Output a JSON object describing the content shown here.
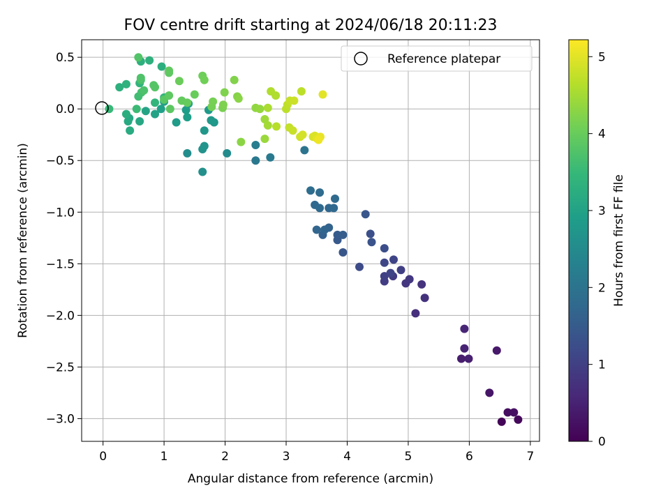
{
  "chart_data": {
    "type": "scatter",
    "title": "FOV centre drift starting at 2024/06/18 20:11:23",
    "xlabel": "Angular distance from reference (arcmin)",
    "ylabel": "Rotation from reference (arcmin)",
    "xlim": [
      -0.35,
      7.15
    ],
    "ylim": [
      -3.22,
      0.67
    ],
    "xticks": [
      0,
      1,
      2,
      3,
      4,
      5,
      6,
      7
    ],
    "xtick_labels": [
      "0",
      "1",
      "2",
      "3",
      "4",
      "5",
      "6",
      "7"
    ],
    "yticks": [
      0.5,
      0.0,
      -0.5,
      -1.0,
      -1.5,
      -2.0,
      -2.5,
      -3.0
    ],
    "ytick_labels": [
      "0.5",
      "0.0",
      "−0.5",
      "−1.0",
      "−1.5",
      "−2.0",
      "−2.5",
      "−3.0"
    ],
    "grid": true,
    "legend": {
      "position": "upper right",
      "entries": [
        "Reference platepar"
      ]
    },
    "reference_point": {
      "x": 0.0,
      "y": 0.0,
      "label": "Reference platepar"
    },
    "colorbar": {
      "label": "Hours from first FF file",
      "range": [
        0,
        5.22
      ],
      "ticks": [
        0,
        1,
        2,
        3,
        4,
        5
      ],
      "tick_labels": [
        "0",
        "1",
        "2",
        "3",
        "4",
        "5"
      ],
      "colormap": "viridis",
      "stops": [
        "#440154",
        "#482878",
        "#3e4989",
        "#31688e",
        "#26828e",
        "#1f9e89",
        "#35b779",
        "#6ece58",
        "#b5de2b",
        "#fde725"
      ]
    },
    "points_fields": [
      "x",
      "y",
      "hours"
    ],
    "points": [
      [
        6.53,
        -3.03,
        0.05
      ],
      [
        6.8,
        -3.01,
        0.12
      ],
      [
        6.63,
        -2.94,
        0.18
      ],
      [
        6.73,
        -2.94,
        0.22
      ],
      [
        6.33,
        -2.75,
        0.3
      ],
      [
        5.87,
        -2.42,
        0.42
      ],
      [
        5.99,
        -2.42,
        0.46
      ],
      [
        6.45,
        -2.34,
        0.35
      ],
      [
        5.92,
        -2.32,
        0.5
      ],
      [
        5.92,
        -2.13,
        0.55
      ],
      [
        5.12,
        -1.98,
        0.7
      ],
      [
        5.27,
        -1.83,
        0.75
      ],
      [
        4.96,
        -1.69,
        0.82
      ],
      [
        5.22,
        -1.7,
        0.78
      ],
      [
        5.02,
        -1.65,
        0.85
      ],
      [
        4.61,
        -1.67,
        0.95
      ],
      [
        4.75,
        -1.62,
        0.9
      ],
      [
        4.61,
        -1.62,
        1.0
      ],
      [
        4.71,
        -1.59,
        1.05
      ],
      [
        4.88,
        -1.56,
        0.98
      ],
      [
        4.61,
        -1.49,
        1.1
      ],
      [
        4.76,
        -1.46,
        1.08
      ],
      [
        4.2,
        -1.53,
        1.2
      ],
      [
        4.61,
        -1.35,
        1.25
      ],
      [
        3.93,
        -1.39,
        1.4
      ],
      [
        4.4,
        -1.29,
        1.35
      ],
      [
        3.84,
        -1.27,
        1.45
      ],
      [
        3.84,
        -1.22,
        1.5
      ],
      [
        3.93,
        -1.22,
        1.55
      ],
      [
        4.38,
        -1.21,
        1.3
      ],
      [
        3.6,
        -1.22,
        1.6
      ],
      [
        3.7,
        -1.15,
        1.65
      ],
      [
        3.5,
        -1.17,
        1.7
      ],
      [
        3.63,
        -1.17,
        1.68
      ],
      [
        4.3,
        -1.02,
        1.4
      ],
      [
        3.47,
        -0.93,
        1.75
      ],
      [
        3.55,
        -0.96,
        1.78
      ],
      [
        3.7,
        -0.96,
        1.72
      ],
      [
        3.78,
        -0.96,
        1.76
      ],
      [
        3.8,
        -0.87,
        1.8
      ],
      [
        3.4,
        -0.79,
        1.85
      ],
      [
        3.55,
        -0.81,
        1.82
      ],
      [
        3.3,
        -0.4,
        2.0
      ],
      [
        2.5,
        -0.5,
        2.1
      ],
      [
        2.74,
        -0.47,
        2.15
      ],
      [
        2.5,
        -0.35,
        2.2
      ],
      [
        2.03,
        -0.43,
        2.5
      ],
      [
        1.63,
        -0.61,
        2.6
      ],
      [
        1.38,
        -0.43,
        2.55
      ],
      [
        1.63,
        -0.39,
        2.65
      ],
      [
        1.66,
        -0.36,
        2.7
      ],
      [
        1.66,
        -0.21,
        2.75
      ],
      [
        1.77,
        -0.11,
        2.8
      ],
      [
        1.82,
        -0.13,
        2.78
      ],
      [
        1.73,
        -0.01,
        2.82
      ],
      [
        1.2,
        -0.13,
        2.85
      ],
      [
        1.38,
        -0.08,
        2.9
      ],
      [
        1.36,
        -0.01,
        2.88
      ],
      [
        1.4,
        0.05,
        2.92
      ],
      [
        0.95,
        0.0,
        2.95
      ],
      [
        1.0,
        0.07,
        2.97
      ],
      [
        0.85,
        -0.05,
        3.0
      ],
      [
        0.7,
        -0.02,
        3.05
      ],
      [
        0.6,
        -0.12,
        3.1
      ],
      [
        0.43,
        -0.09,
        3.12
      ],
      [
        0.41,
        -0.12,
        3.15
      ],
      [
        0.44,
        -0.21,
        3.2
      ],
      [
        0.38,
        -0.05,
        3.25
      ],
      [
        0.27,
        0.21,
        3.3
      ],
      [
        0.38,
        0.24,
        3.35
      ],
      [
        0.6,
        0.25,
        3.38
      ],
      [
        0.62,
        0.46,
        3.3
      ],
      [
        0.76,
        0.47,
        3.32
      ],
      [
        0.96,
        0.41,
        3.28
      ],
      [
        1.0,
        0.11,
        3.4
      ],
      [
        0.85,
        0.06,
        3.42
      ],
      [
        0.1,
        0.0,
        3.5
      ],
      [
        0.55,
        0.0,
        3.55
      ],
      [
        0.58,
        0.12,
        3.6
      ],
      [
        0.63,
        0.16,
        3.65
      ],
      [
        0.62,
        0.28,
        3.7
      ],
      [
        0.62,
        0.3,
        3.75
      ],
      [
        0.67,
        0.18,
        3.72
      ],
      [
        0.58,
        0.5,
        3.78
      ],
      [
        0.83,
        0.23,
        3.8
      ],
      [
        0.85,
        0.21,
        3.82
      ],
      [
        1.0,
        0.09,
        3.85
      ],
      [
        1.1,
        0.0,
        3.88
      ],
      [
        1.08,
        0.13,
        3.9
      ],
      [
        1.08,
        0.37,
        3.92
      ],
      [
        1.08,
        0.35,
        3.9
      ],
      [
        1.29,
        0.08,
        3.95
      ],
      [
        1.38,
        0.06,
        3.98
      ],
      [
        1.5,
        0.14,
        4.0
      ],
      [
        1.25,
        0.27,
        4.02
      ],
      [
        1.63,
        0.32,
        4.05
      ],
      [
        1.66,
        0.28,
        4.08
      ],
      [
        1.78,
        0.02,
        4.1
      ],
      [
        1.8,
        0.07,
        4.12
      ],
      [
        1.96,
        0.01,
        4.15
      ],
      [
        1.97,
        0.04,
        4.18
      ],
      [
        1.99,
        0.16,
        4.2
      ],
      [
        2.15,
        0.28,
        4.22
      ],
      [
        2.2,
        0.12,
        4.25
      ],
      [
        2.22,
        0.1,
        4.28
      ],
      [
        2.26,
        -0.32,
        4.3
      ],
      [
        2.5,
        0.01,
        4.35
      ],
      [
        2.57,
        0.0,
        4.38
      ],
      [
        2.65,
        -0.29,
        4.42
      ],
      [
        2.65,
        -0.1,
        4.45
      ],
      [
        2.7,
        -0.16,
        4.5
      ],
      [
        2.7,
        0.01,
        4.55
      ],
      [
        2.75,
        0.17,
        4.6
      ],
      [
        2.84,
        -0.17,
        4.65
      ],
      [
        2.83,
        0.13,
        4.6
      ],
      [
        3.0,
        0.0,
        4.7
      ],
      [
        3.02,
        0.04,
        4.72
      ],
      [
        3.05,
        -0.18,
        4.75
      ],
      [
        3.06,
        0.08,
        4.78
      ],
      [
        3.11,
        -0.21,
        4.8
      ],
      [
        3.13,
        0.08,
        4.82
      ],
      [
        3.23,
        -0.27,
        4.85
      ],
      [
        3.25,
        0.17,
        4.7
      ],
      [
        3.27,
        -0.25,
        4.88
      ],
      [
        3.44,
        -0.27,
        4.92
      ],
      [
        3.47,
        -0.26,
        4.95
      ],
      [
        3.51,
        -0.29,
        5.0
      ],
      [
        3.53,
        -0.3,
        5.1
      ],
      [
        3.56,
        -0.27,
        5.05
      ],
      [
        3.6,
        0.14,
        5.0
      ]
    ]
  }
}
